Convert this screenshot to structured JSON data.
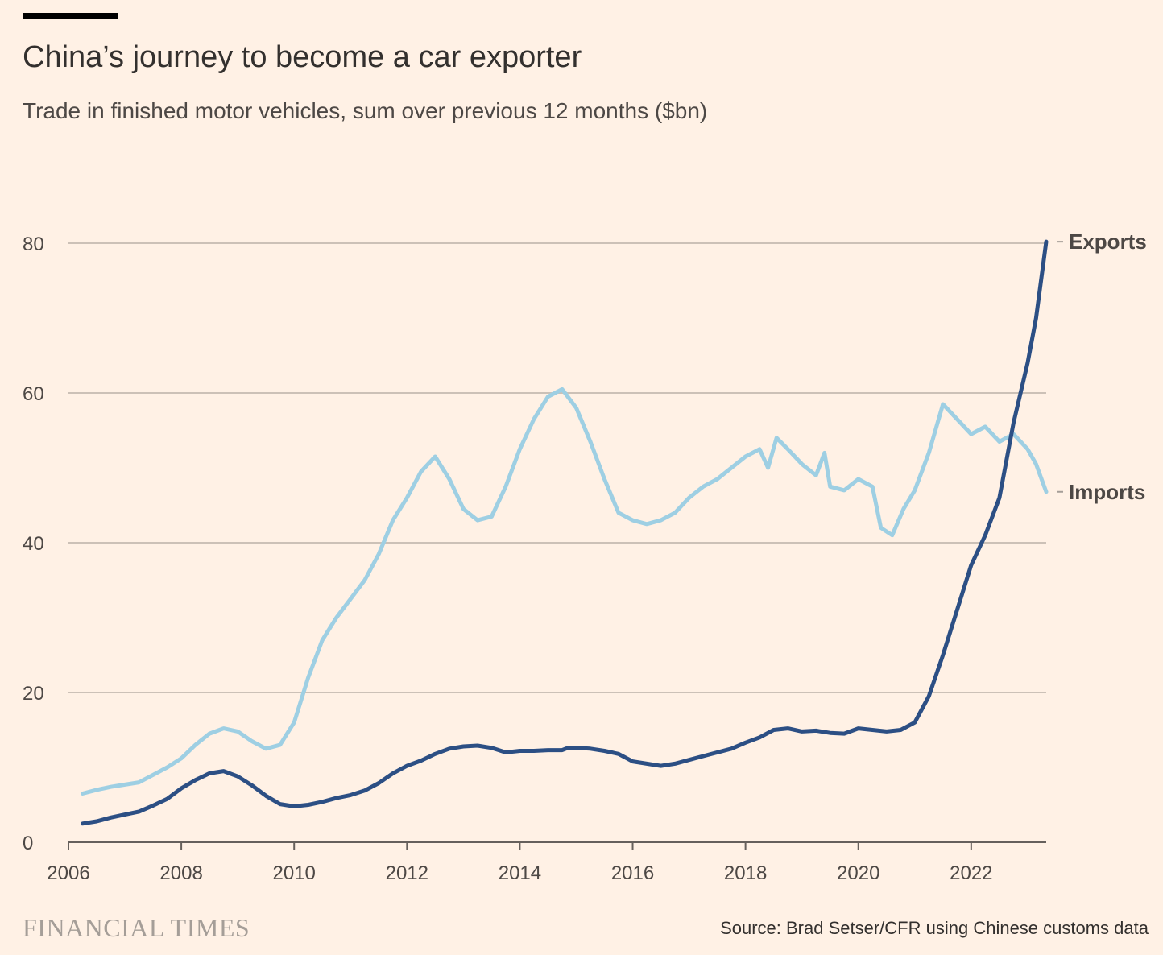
{
  "header": {
    "title": "China’s journey to become a car exporter",
    "subtitle": "Trade in finished motor vehicles, sum over previous 12 months ($bn)"
  },
  "footer": {
    "logo_text": "FINANCIAL TIMES",
    "source": "Source: Brad Setser/CFR using Chinese customs data"
  },
  "colors": {
    "background": "#FFF1E5",
    "exports": "#2C4F84",
    "imports": "#9ECFE3",
    "grid": "#CCC1B7",
    "text": "#33302E"
  },
  "chart_data": {
    "type": "line",
    "title": "China’s journey to become a car exporter",
    "subtitle": "Trade in finished motor vehicles, sum over previous 12 months ($bn)",
    "xlabel": "",
    "ylabel": "",
    "xlim": [
      2006,
      2023.33
    ],
    "ylim": [
      0,
      80
    ],
    "x_ticks": [
      "2006",
      "2008",
      "2010",
      "2012",
      "2014",
      "2016",
      "2018",
      "2020",
      "2022"
    ],
    "x_tick_values": [
      2006,
      2008,
      2010,
      2012,
      2014,
      2016,
      2018,
      2020,
      2022
    ],
    "y_ticks": [
      "0",
      "20",
      "40",
      "60",
      "80"
    ],
    "y_tick_values": [
      0,
      20,
      40,
      60,
      80
    ],
    "grid": "horizontal",
    "legend": "direct labels at right end of lines",
    "series": [
      {
        "name": "Exports",
        "color": "#2C4F84",
        "points": [
          [
            2006.25,
            2.5
          ],
          [
            2006.5,
            2.8
          ],
          [
            2006.75,
            3.3
          ],
          [
            2007.0,
            3.7
          ],
          [
            2007.25,
            4.1
          ],
          [
            2007.5,
            4.9
          ],
          [
            2007.75,
            5.8
          ],
          [
            2008.0,
            7.2
          ],
          [
            2008.25,
            8.3
          ],
          [
            2008.5,
            9.2
          ],
          [
            2008.75,
            9.5
          ],
          [
            2009.0,
            8.8
          ],
          [
            2009.25,
            7.6
          ],
          [
            2009.5,
            6.2
          ],
          [
            2009.75,
            5.1
          ],
          [
            2010.0,
            4.8
          ],
          [
            2010.25,
            5.0
          ],
          [
            2010.5,
            5.4
          ],
          [
            2010.75,
            5.9
          ],
          [
            2011.0,
            6.3
          ],
          [
            2011.25,
            6.9
          ],
          [
            2011.5,
            7.9
          ],
          [
            2011.75,
            9.2
          ],
          [
            2012.0,
            10.2
          ],
          [
            2012.25,
            10.9
          ],
          [
            2012.5,
            11.8
          ],
          [
            2012.75,
            12.5
          ],
          [
            2013.0,
            12.8
          ],
          [
            2013.25,
            12.9
          ],
          [
            2013.5,
            12.6
          ],
          [
            2013.75,
            12.0
          ],
          [
            2014.0,
            12.2
          ],
          [
            2014.25,
            12.2
          ],
          [
            2014.5,
            12.3
          ],
          [
            2014.75,
            12.3
          ],
          [
            2014.85,
            12.6
          ],
          [
            2015.0,
            12.6
          ],
          [
            2015.25,
            12.5
          ],
          [
            2015.5,
            12.2
          ],
          [
            2015.75,
            11.8
          ],
          [
            2016.0,
            10.8
          ],
          [
            2016.25,
            10.5
          ],
          [
            2016.5,
            10.2
          ],
          [
            2016.75,
            10.5
          ],
          [
            2017.0,
            11.0
          ],
          [
            2017.25,
            11.5
          ],
          [
            2017.5,
            12.0
          ],
          [
            2017.75,
            12.5
          ],
          [
            2018.0,
            13.3
          ],
          [
            2018.25,
            14.0
          ],
          [
            2018.5,
            15.0
          ],
          [
            2018.75,
            15.2
          ],
          [
            2019.0,
            14.8
          ],
          [
            2019.25,
            14.9
          ],
          [
            2019.5,
            14.6
          ],
          [
            2019.75,
            14.5
          ],
          [
            2020.0,
            15.2
          ],
          [
            2020.25,
            15.0
          ],
          [
            2020.5,
            14.8
          ],
          [
            2020.75,
            15.0
          ],
          [
            2021.0,
            16.0
          ],
          [
            2021.25,
            19.5
          ],
          [
            2021.5,
            25.0
          ],
          [
            2021.75,
            31.0
          ],
          [
            2022.0,
            37.0
          ],
          [
            2022.25,
            41.0
          ],
          [
            2022.5,
            46.0
          ],
          [
            2022.75,
            56.0
          ],
          [
            2023.0,
            64.0
          ],
          [
            2023.15,
            70.0
          ],
          [
            2023.33,
            80.2
          ]
        ]
      },
      {
        "name": "Imports",
        "color": "#9ECFE3",
        "points": [
          [
            2006.25,
            6.5
          ],
          [
            2006.5,
            7.0
          ],
          [
            2006.75,
            7.4
          ],
          [
            2007.0,
            7.7
          ],
          [
            2007.25,
            8.0
          ],
          [
            2007.5,
            9.0
          ],
          [
            2007.75,
            10.0
          ],
          [
            2008.0,
            11.2
          ],
          [
            2008.25,
            13.0
          ],
          [
            2008.5,
            14.5
          ],
          [
            2008.75,
            15.2
          ],
          [
            2009.0,
            14.8
          ],
          [
            2009.25,
            13.5
          ],
          [
            2009.5,
            12.5
          ],
          [
            2009.75,
            13.0
          ],
          [
            2010.0,
            16.0
          ],
          [
            2010.25,
            22.0
          ],
          [
            2010.5,
            27.0
          ],
          [
            2010.75,
            30.0
          ],
          [
            2011.0,
            32.5
          ],
          [
            2011.25,
            35.0
          ],
          [
            2011.5,
            38.5
          ],
          [
            2011.75,
            43.0
          ],
          [
            2012.0,
            46.0
          ],
          [
            2012.25,
            49.5
          ],
          [
            2012.5,
            51.5
          ],
          [
            2012.75,
            48.5
          ],
          [
            2013.0,
            44.5
          ],
          [
            2013.25,
            43.0
          ],
          [
            2013.5,
            43.5
          ],
          [
            2013.75,
            47.5
          ],
          [
            2014.0,
            52.5
          ],
          [
            2014.25,
            56.5
          ],
          [
            2014.5,
            59.5
          ],
          [
            2014.75,
            60.5
          ],
          [
            2015.0,
            58.0
          ],
          [
            2015.25,
            53.5
          ],
          [
            2015.5,
            48.5
          ],
          [
            2015.75,
            44.0
          ],
          [
            2016.0,
            43.0
          ],
          [
            2016.25,
            42.5
          ],
          [
            2016.5,
            43.0
          ],
          [
            2016.75,
            44.0
          ],
          [
            2017.0,
            46.0
          ],
          [
            2017.25,
            47.5
          ],
          [
            2017.5,
            48.5
          ],
          [
            2017.75,
            50.0
          ],
          [
            2018.0,
            51.5
          ],
          [
            2018.25,
            52.5
          ],
          [
            2018.4,
            50.0
          ],
          [
            2018.55,
            54.0
          ],
          [
            2018.75,
            52.5
          ],
          [
            2019.0,
            50.5
          ],
          [
            2019.25,
            49.0
          ],
          [
            2019.4,
            52.0
          ],
          [
            2019.5,
            47.5
          ],
          [
            2019.75,
            47.0
          ],
          [
            2020.0,
            48.5
          ],
          [
            2020.25,
            47.5
          ],
          [
            2020.4,
            42.0
          ],
          [
            2020.6,
            41.0
          ],
          [
            2020.8,
            44.5
          ],
          [
            2021.0,
            47.0
          ],
          [
            2021.25,
            52.0
          ],
          [
            2021.5,
            58.5
          ],
          [
            2021.75,
            56.5
          ],
          [
            2022.0,
            54.5
          ],
          [
            2022.25,
            55.5
          ],
          [
            2022.5,
            53.5
          ],
          [
            2022.75,
            54.5
          ],
          [
            2023.0,
            52.5
          ],
          [
            2023.15,
            50.5
          ],
          [
            2023.33,
            46.8
          ]
        ]
      }
    ]
  }
}
